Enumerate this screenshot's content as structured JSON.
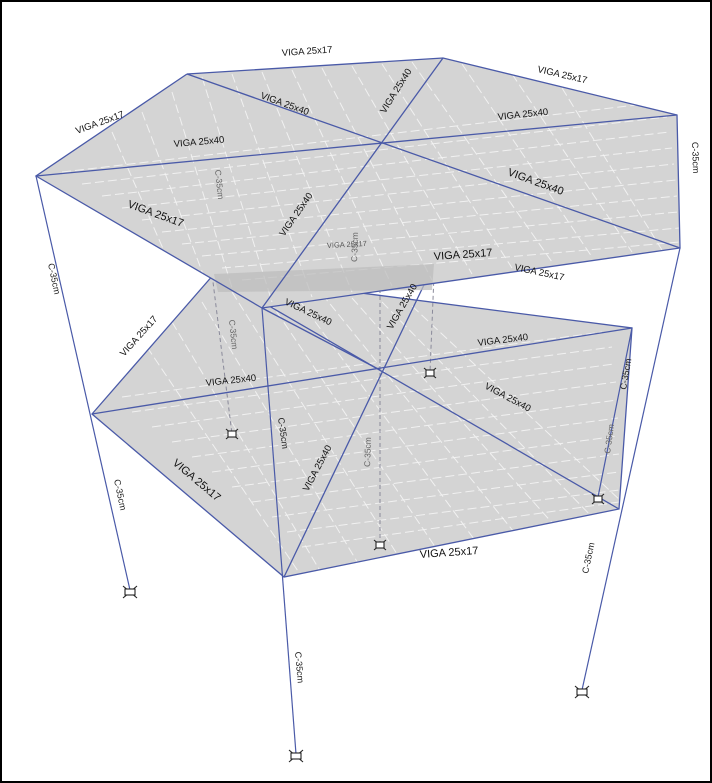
{
  "diagram": {
    "beam_labels": {
      "b1": "VIGA 25x17",
      "b2": "VIGA 25x17",
      "b3": "VIGA 25x17",
      "b4": "VIGA 25x40",
      "b5": "VIGA 25x40",
      "b6": "VIGA 25x40",
      "b7": "VIGA 25x40",
      "b8": "VIGA 25x40",
      "b9": "VIGA 25x40",
      "b10": "VIGA 25x17",
      "b11": "VIGA 25x17",
      "b12": "VIGA 25x17",
      "b13": "VIGA 25x17",
      "b14": "VIGA 25x40",
      "b15": "VIGA 25x40",
      "b16": "VIGA 25x40",
      "b17": "VIGA 25x40",
      "b18": "VIGA 25x40",
      "b19": "VIGA 25x40",
      "b20": "VIGA 25x17",
      "b21": "VIGA 25x17",
      "b22": "VIGA 25x17"
    },
    "column_labels": {
      "c1": "C-35cm",
      "c2": "C-35cm",
      "c3": "C-35cm",
      "c4": "C-35cm",
      "c5": "C-35cm",
      "c6": "C-35cm",
      "c7": "C-35cm",
      "c8": "C-35cm",
      "c9": "C-35cm",
      "c10": "C-35cm",
      "c11": "C-35cm",
      "c12": "C-35cm"
    }
  }
}
